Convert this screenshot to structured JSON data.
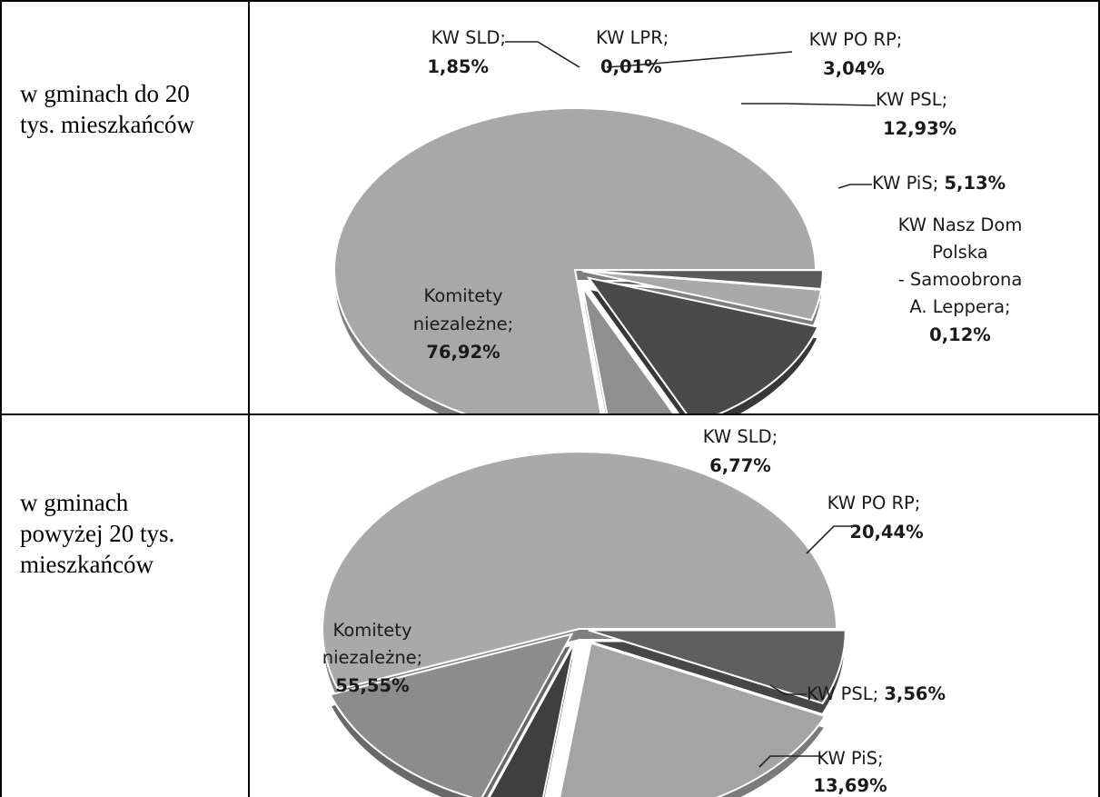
{
  "rows": [
    {
      "label_lines": [
        "w gminach do 20",
        "tys. mieszkańców"
      ]
    },
    {
      "label_lines": [
        "w gminach",
        "powyżej 20 tys.",
        "mieszkańców"
      ]
    }
  ],
  "chart_data": [
    {
      "type": "pie",
      "slices": [
        {
          "name": "KW SLD",
          "value": 1.85,
          "label": "KW SLD;",
          "value_text": "1,85%",
          "color": "#5b5b5b"
        },
        {
          "name": "KW LPR",
          "value": 0.01,
          "label": "KW LPR;",
          "value_text": "0,01%",
          "color": "#444444"
        },
        {
          "name": "KW PO RP",
          "value": 3.04,
          "label": "KW PO RP;",
          "value_text": "3,04%",
          "color": "#a9a9a9"
        },
        {
          "name": "KW PSL",
          "value": 12.93,
          "label": "KW PSL;",
          "value_text": "12,93%",
          "color": "#4a4a4a"
        },
        {
          "name": "KW PiS",
          "value": 5.13,
          "label": "KW PiS;",
          "value_text": "5,13%",
          "color": "#8f8f8f"
        },
        {
          "name": "KW Nasz Dom Polska - Samoobrona A. Leppera",
          "value": 0.12,
          "label_lines": [
            "KW Nasz Dom",
            "Polska",
            "- Samoobrona",
            "A. Leppera;"
          ],
          "value_text": "0,12%",
          "color": "#b7b7b7"
        },
        {
          "name": "Komitety niezależne",
          "value": 76.92,
          "label_lines": [
            "Komitety",
            "niezależne;"
          ],
          "value_text": "76,92%",
          "color": "#a8a8a8"
        }
      ]
    },
    {
      "type": "pie",
      "slices": [
        {
          "name": "KW SLD",
          "value": 6.77,
          "label": "KW SLD;",
          "value_text": "6,77%",
          "color": "#5f5f5f"
        },
        {
          "name": "KW PO RP",
          "value": 20.44,
          "label": "KW PO RP;",
          "value_text": "20,44%",
          "color": "#a4a4a4"
        },
        {
          "name": "KW PSL",
          "value": 3.56,
          "label": "KW PSL;",
          "value_text": "3,56%",
          "color": "#3f3f3f"
        },
        {
          "name": "KW PiS",
          "value": 13.69,
          "label": "KW PiS;",
          "value_text": "13,69%",
          "color": "#8c8c8c"
        },
        {
          "name": "Komitety niezależne",
          "value": 55.55,
          "label_lines": [
            "Komitety",
            "niezależne;"
          ],
          "value_text": "55,55%",
          "color": "#a9a9a9"
        }
      ]
    }
  ]
}
